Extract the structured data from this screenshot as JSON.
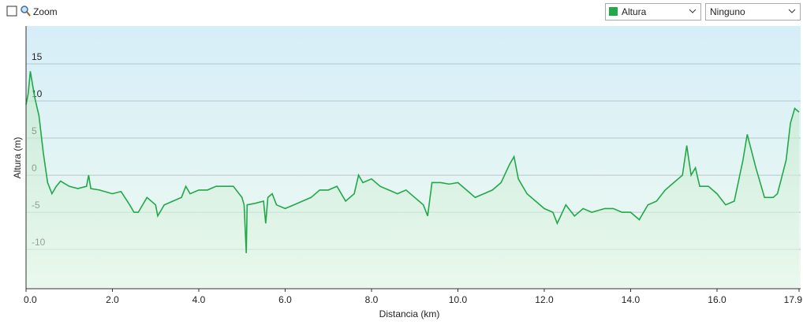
{
  "controls": {
    "zoom": "Zoom",
    "series_select": "Altura",
    "compare_select": "Ninguno"
  },
  "chart_data": {
    "type": "line",
    "y_label": "Altura (m)",
    "x_label": "Distancia  (km)",
    "xlim": [
      0,
      17.9
    ],
    "xticks": [
      {
        "value": 0,
        "label": "0.0"
      },
      {
        "value": 2,
        "label": "2.0"
      },
      {
        "value": 4,
        "label": "4.0"
      },
      {
        "value": 6,
        "label": "6.0"
      },
      {
        "value": 8,
        "label": "8.0"
      },
      {
        "value": 10,
        "label": "10.0"
      },
      {
        "value": 12,
        "label": "12.0"
      },
      {
        "value": 14,
        "label": "14.0"
      },
      {
        "value": 16,
        "label": "16.0"
      },
      17.9
    ],
    "ylim": [
      -15.3,
      20.1
    ],
    "yticks": [
      15,
      10,
      5,
      0,
      -5,
      -10
    ],
    "grid": true,
    "x": [
      0,
      0.05,
      0.1,
      0.2,
      0.3,
      0.4,
      0.5,
      0.6,
      0.7,
      0.8,
      1.0,
      1.2,
      1.4,
      1.45,
      1.5,
      1.7,
      2.0,
      2.2,
      2.4,
      2.5,
      2.6,
      2.8,
      3.0,
      3.05,
      3.2,
      3.4,
      3.6,
      3.7,
      3.8,
      4.0,
      4.2,
      4.4,
      4.6,
      4.8,
      5.0,
      5.05,
      5.1,
      5.12,
      5.3,
      5.5,
      5.55,
      5.6,
      5.7,
      5.8,
      6.0,
      6.2,
      6.4,
      6.6,
      6.8,
      7.0,
      7.2,
      7.4,
      7.6,
      7.7,
      7.8,
      8.0,
      8.2,
      8.4,
      8.6,
      8.8,
      9.0,
      9.2,
      9.3,
      9.4,
      9.6,
      9.8,
      10.0,
      10.2,
      10.4,
      10.6,
      10.8,
      11.0,
      11.2,
      11.3,
      11.4,
      11.6,
      11.8,
      12.0,
      12.2,
      12.3,
      12.5,
      12.7,
      12.9,
      13.1,
      13.4,
      13.6,
      13.8,
      14.0,
      14.2,
      14.4,
      14.6,
      14.8,
      15.0,
      15.2,
      15.3,
      15.4,
      15.5,
      15.6,
      15.8,
      16.0,
      16.2,
      16.4,
      16.6,
      16.7,
      16.9,
      17.1,
      17.3,
      17.4,
      17.6,
      17.7,
      17.8,
      17.9
    ],
    "series": [
      {
        "name": "Altura",
        "color": "#22a849",
        "values": [
          9.5,
          11,
          14,
          10.5,
          8,
          3,
          -1,
          -2.5,
          -1.5,
          -0.8,
          -1.5,
          -1.8,
          -1.5,
          0,
          -1.8,
          -2,
          -2.5,
          -2.2,
          -4,
          -5,
          -5,
          -3,
          -4,
          -5.5,
          -4,
          -3.5,
          -3,
          -1.5,
          -2.5,
          -2,
          -2,
          -1.5,
          -1.5,
          -1.5,
          -3,
          -4,
          -10.5,
          -4,
          -3.8,
          -3.5,
          -6.5,
          -3,
          -2.5,
          -4,
          -4.5,
          -4,
          -3.5,
          -3,
          -2,
          -2,
          -1.5,
          -3.5,
          -2.5,
          0,
          -1,
          -0.5,
          -1.5,
          -2,
          -2.5,
          -2,
          -3,
          -4,
          -5.5,
          -1,
          -1,
          -1.2,
          -1,
          -2,
          -3,
          -2.5,
          -2,
          -1,
          1.5,
          2.5,
          -0.5,
          -2.5,
          -3.5,
          -4.5,
          -5,
          -6.5,
          -4,
          -5.5,
          -4.5,
          -5,
          -4.5,
          -4.5,
          -5,
          -5,
          -6,
          -4,
          -3.5,
          -2,
          -1,
          0,
          4,
          0,
          1,
          -1.5,
          -1.5,
          -2.5,
          -4,
          -3.5,
          2,
          5.5,
          1,
          -3,
          -3,
          -2.5,
          2,
          7,
          9,
          8.5
        ]
      }
    ]
  }
}
